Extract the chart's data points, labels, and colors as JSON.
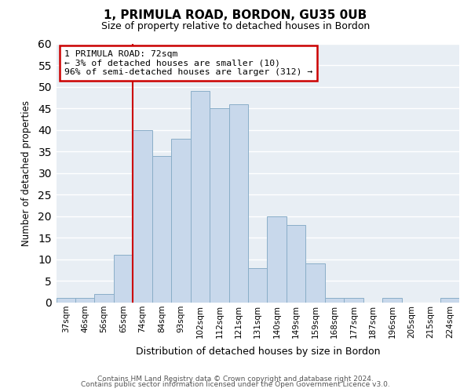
{
  "title": "1, PRIMULA ROAD, BORDON, GU35 0UB",
  "subtitle": "Size of property relative to detached houses in Bordon",
  "xlabel": "Distribution of detached houses by size in Bordon",
  "ylabel": "Number of detached properties",
  "categories": [
    "37sqm",
    "46sqm",
    "56sqm",
    "65sqm",
    "74sqm",
    "84sqm",
    "93sqm",
    "102sqm",
    "112sqm",
    "121sqm",
    "131sqm",
    "140sqm",
    "149sqm",
    "159sqm",
    "168sqm",
    "177sqm",
    "187sqm",
    "196sqm",
    "205sqm",
    "215sqm",
    "224sqm"
  ],
  "values": [
    1,
    1,
    2,
    11,
    40,
    34,
    38,
    49,
    45,
    46,
    8,
    20,
    18,
    9,
    1,
    1,
    0,
    1,
    0,
    0,
    1
  ],
  "bar_color": "#c8d8eb",
  "bar_edge_color": "#8aaec8",
  "marker_line_index": 4,
  "marker_line_color": "#cc0000",
  "annotation_box_edge_color": "#cc0000",
  "annotation_text_line1": "1 PRIMULA ROAD: 72sqm",
  "annotation_text_line2": "← 3% of detached houses are smaller (10)",
  "annotation_text_line3": "96% of semi-detached houses are larger (312) →",
  "ylim": [
    0,
    60
  ],
  "yticks": [
    0,
    5,
    10,
    15,
    20,
    25,
    30,
    35,
    40,
    45,
    50,
    55,
    60
  ],
  "footer1": "Contains HM Land Registry data © Crown copyright and database right 2024.",
  "footer2": "Contains public sector information licensed under the Open Government Licence v3.0.",
  "background_color": "#ffffff",
  "plot_bg_color": "#e8eef4",
  "grid_color": "#ffffff"
}
